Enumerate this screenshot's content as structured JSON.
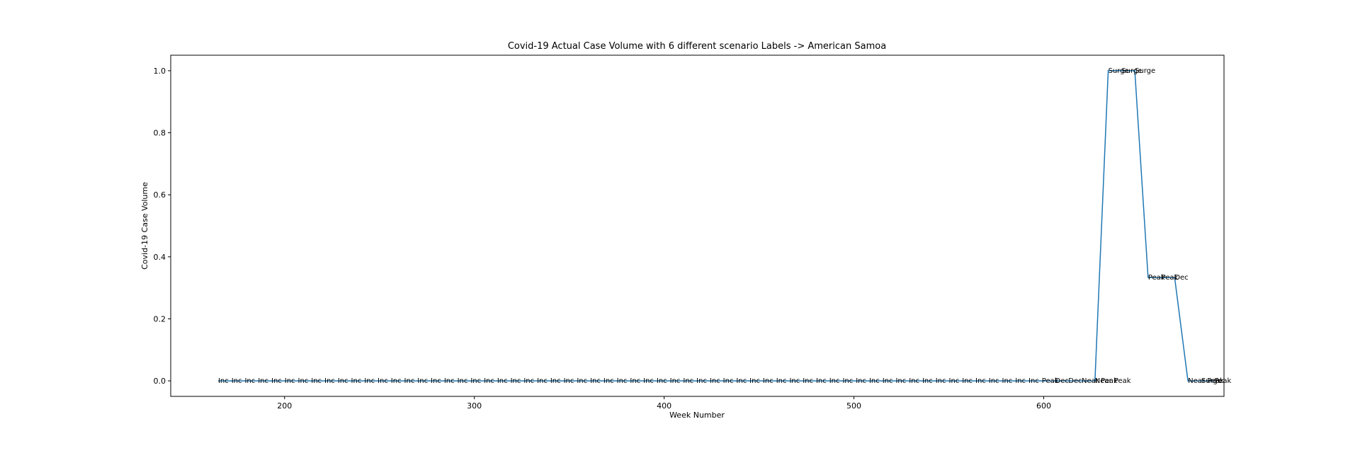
{
  "chart_data": {
    "type": "line",
    "title": "Covid-19 Actual Case Volume with 6 different scenario Labels  -> American Samoa",
    "xlabel": "Week Number",
    "ylabel": "Covid-19 Case Volume",
    "xlim": [
      140,
      695
    ],
    "ylim": [
      -0.05,
      1.05
    ],
    "xticks": [
      200,
      300,
      400,
      500,
      600
    ],
    "yticks": [
      0.0,
      0.2,
      0.4,
      0.6,
      0.8,
      1.0
    ],
    "xtick_labels": [
      "200",
      "300",
      "400",
      "500",
      "600"
    ],
    "ytick_labels": [
      "0.0",
      "0.2",
      "0.4",
      "0.6",
      "0.8",
      "1.0"
    ],
    "grid": false,
    "line_color": "#1f77b4",
    "series": [
      {
        "x_start": 165,
        "x_step": 7,
        "values": [
          0,
          0,
          0,
          0,
          0,
          0,
          0,
          0,
          0,
          0,
          0,
          0,
          0,
          0,
          0,
          0,
          0,
          0,
          0,
          0,
          0,
          0,
          0,
          0,
          0,
          0,
          0,
          0,
          0,
          0,
          0,
          0,
          0,
          0,
          0,
          0,
          0,
          0,
          0,
          0,
          0,
          0,
          0,
          0,
          0,
          0,
          0,
          0,
          0,
          0,
          0,
          0,
          0,
          0,
          0,
          0,
          0,
          0,
          0,
          0,
          0,
          0,
          0,
          0,
          0,
          0,
          0,
          1,
          1,
          1,
          0.333,
          0.333,
          0.333,
          0,
          0,
          0
        ],
        "labels": [
          "Inc",
          "Inc",
          "Inc",
          "Inc",
          "Inc",
          "Inc",
          "Inc",
          "Inc",
          "Inc",
          "Inc",
          "Inc",
          "Inc",
          "Inc",
          "Inc",
          "Inc",
          "Inc",
          "Inc",
          "Inc",
          "Inc",
          "Inc",
          "Inc",
          "Inc",
          "Inc",
          "Inc",
          "Inc",
          "Inc",
          "Inc",
          "Inc",
          "Inc",
          "Inc",
          "Inc",
          "Inc",
          "Inc",
          "Inc",
          "Inc",
          "Inc",
          "Inc",
          "Inc",
          "Inc",
          "Inc",
          "Inc",
          "Inc",
          "Inc",
          "Inc",
          "Inc",
          "Inc",
          "Inc",
          "Inc",
          "Inc",
          "Inc",
          "Inc",
          "Inc",
          "Inc",
          "Inc",
          "Inc",
          "Inc",
          "Inc",
          "Inc",
          "Inc",
          "Inc",
          "Inc",
          "Inc",
          "Peak",
          "Dec",
          "Dec",
          "Near Peak",
          "Near Peak",
          "Surge",
          "Surge",
          "Surge",
          "Peak",
          "Peak",
          "Dec",
          "Near Peak",
          "Surge",
          "Peak"
        ]
      }
    ]
  }
}
